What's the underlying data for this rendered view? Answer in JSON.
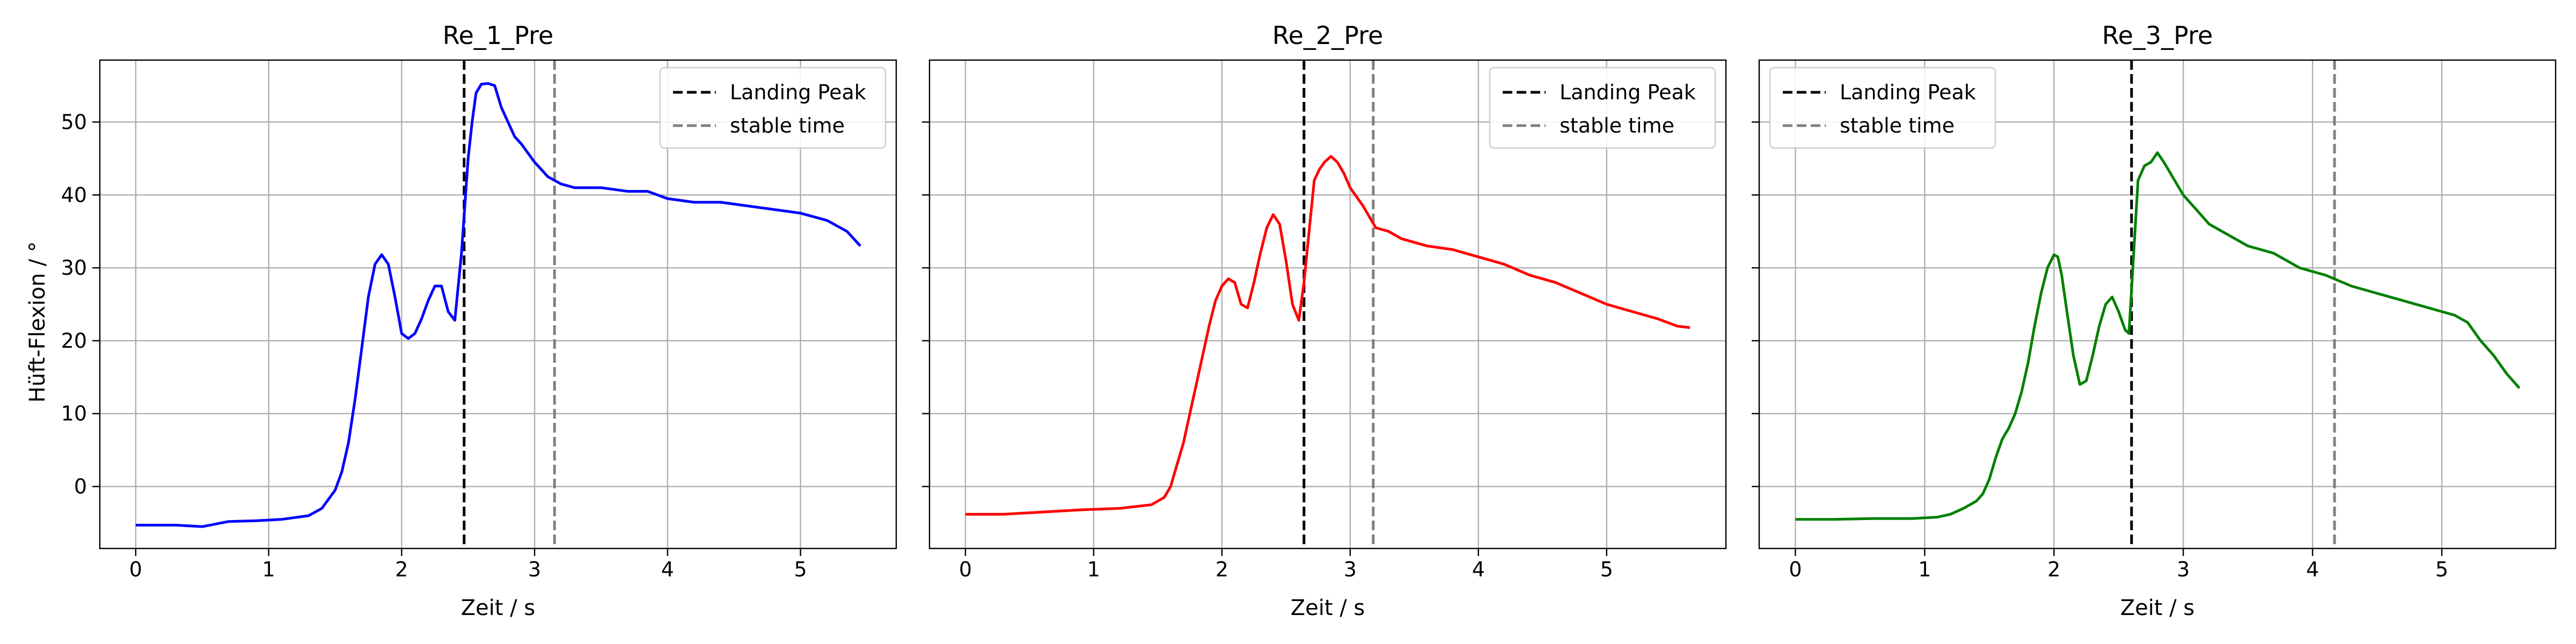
{
  "figure": {
    "ylabel": "Hüft-Flexion / °"
  },
  "chart_data": [
    {
      "type": "line",
      "title": "Re_1_Pre",
      "xlabel": "Zeit / s",
      "ylabel": "Hüft-Flexion / °",
      "xlim": [
        -0.27,
        5.72
      ],
      "ylim": [
        -8.5,
        58.5
      ],
      "xticks": [
        0,
        1,
        2,
        3,
        4,
        5
      ],
      "yticks": [
        0,
        10,
        20,
        30,
        40,
        50
      ],
      "grid": true,
      "legend_position": "top-right",
      "series": [
        {
          "color": "#0000ff",
          "x": [
            0,
            0.3,
            0.5,
            0.7,
            0.9,
            1.1,
            1.3,
            1.4,
            1.5,
            1.55,
            1.6,
            1.65,
            1.7,
            1.75,
            1.8,
            1.85,
            1.9,
            1.95,
            2.0,
            2.05,
            2.1,
            2.15,
            2.2,
            2.25,
            2.3,
            2.35,
            2.4,
            2.45,
            2.5,
            2.53,
            2.56,
            2.6,
            2.65,
            2.7,
            2.75,
            2.8,
            2.85,
            2.9,
            3.0,
            3.1,
            3.2,
            3.3,
            3.5,
            3.7,
            3.85,
            4.0,
            4.2,
            4.4,
            4.6,
            4.8,
            5.0,
            5.2,
            5.35,
            5.45
          ],
          "y": [
            -5.3,
            -5.3,
            -5.5,
            -4.8,
            -4.7,
            -4.5,
            -4.0,
            -3.0,
            -0.5,
            2.0,
            6.0,
            12.0,
            19.0,
            26.0,
            30.5,
            31.8,
            30.5,
            26.0,
            21.0,
            20.3,
            21.0,
            23.0,
            25.5,
            27.5,
            27.5,
            24.0,
            22.8,
            32.0,
            45.0,
            50.0,
            54.0,
            55.2,
            55.3,
            55.0,
            52.0,
            50.0,
            48.0,
            47.0,
            44.5,
            42.5,
            41.5,
            41.0,
            41.0,
            40.5,
            40.5,
            39.5,
            39.0,
            39.0,
            38.5,
            38.0,
            37.5,
            36.5,
            35.0,
            33.0
          ]
        }
      ],
      "vlines": [
        {
          "name": "Landing Peak",
          "x": 2.47,
          "color": "#000000"
        },
        {
          "name": "stable time",
          "x": 3.15,
          "color": "#808080"
        }
      ],
      "legend": [
        {
          "label": "Landing Peak",
          "color": "#000000"
        },
        {
          "label": "stable time",
          "color": "#808080"
        }
      ]
    },
    {
      "type": "line",
      "title": "Re_2_Pre",
      "xlabel": "Zeit / s",
      "ylabel": "",
      "xlim": [
        -0.28,
        5.93
      ],
      "ylim": [
        -8.5,
        58.5
      ],
      "xticks": [
        0,
        1,
        2,
        3,
        4,
        5
      ],
      "yticks": [
        0,
        10,
        20,
        30,
        40,
        50
      ],
      "grid": true,
      "legend_position": "top-right",
      "series": [
        {
          "color": "#ff0000",
          "x": [
            0,
            0.3,
            0.6,
            0.9,
            1.2,
            1.45,
            1.55,
            1.6,
            1.65,
            1.7,
            1.75,
            1.8,
            1.85,
            1.9,
            1.95,
            2.0,
            2.05,
            2.1,
            2.15,
            2.2,
            2.25,
            2.3,
            2.35,
            2.4,
            2.45,
            2.5,
            2.55,
            2.6,
            2.64,
            2.68,
            2.72,
            2.76,
            2.8,
            2.85,
            2.9,
            2.95,
            3.0,
            3.1,
            3.2,
            3.3,
            3.4,
            3.6,
            3.8,
            4.0,
            4.2,
            4.4,
            4.6,
            4.8,
            5.0,
            5.2,
            5.4,
            5.55,
            5.65
          ],
          "y": [
            -3.8,
            -3.8,
            -3.5,
            -3.2,
            -3.0,
            -2.5,
            -1.5,
            0.0,
            3.0,
            6.0,
            10.0,
            14.0,
            18.0,
            22.0,
            25.5,
            27.5,
            28.5,
            28.0,
            25.0,
            24.5,
            28.0,
            32.0,
            35.5,
            37.3,
            36.0,
            31.0,
            25.0,
            22.8,
            28.0,
            35.0,
            42.0,
            43.5,
            44.5,
            45.3,
            44.5,
            43.0,
            41.0,
            38.5,
            35.5,
            35.0,
            34.0,
            33.0,
            32.5,
            31.5,
            30.5,
            29.0,
            28.0,
            26.5,
            25.0,
            24.0,
            23.0,
            22.0,
            21.8
          ]
        }
      ],
      "vlines": [
        {
          "name": "Landing Peak",
          "x": 2.64,
          "color": "#000000"
        },
        {
          "name": "stable time",
          "x": 3.18,
          "color": "#808080"
        }
      ],
      "legend": [
        {
          "label": "Landing Peak",
          "color": "#000000"
        },
        {
          "label": "stable time",
          "color": "#808080"
        }
      ]
    },
    {
      "type": "line",
      "title": "Re_3_Pre",
      "xlabel": "Zeit / s",
      "ylabel": "",
      "xlim": [
        -0.28,
        5.88
      ],
      "ylim": [
        -8.5,
        58.5
      ],
      "xticks": [
        0,
        1,
        2,
        3,
        4,
        5
      ],
      "yticks": [
        0,
        10,
        20,
        30,
        40,
        50
      ],
      "grid": true,
      "legend_position": "top-left",
      "series": [
        {
          "color": "#008000",
          "x": [
            0,
            0.3,
            0.6,
            0.9,
            1.1,
            1.2,
            1.3,
            1.4,
            1.45,
            1.5,
            1.55,
            1.6,
            1.65,
            1.7,
            1.75,
            1.8,
            1.85,
            1.9,
            1.95,
            2.0,
            2.03,
            2.06,
            2.1,
            2.15,
            2.2,
            2.25,
            2.3,
            2.35,
            2.4,
            2.45,
            2.5,
            2.55,
            2.58,
            2.61,
            2.65,
            2.7,
            2.75,
            2.8,
            2.85,
            2.9,
            3.0,
            3.1,
            3.2,
            3.3,
            3.5,
            3.7,
            3.9,
            4.1,
            4.3,
            4.5,
            4.7,
            4.9,
            5.0,
            5.1,
            5.2,
            5.3,
            5.4,
            5.5,
            5.6
          ],
          "y": [
            -4.5,
            -4.5,
            -4.4,
            -4.4,
            -4.2,
            -3.8,
            -3.0,
            -2.0,
            -1.0,
            1.0,
            4.0,
            6.5,
            8.0,
            10.0,
            13.0,
            17.0,
            22.0,
            26.5,
            30.0,
            31.8,
            31.5,
            29.0,
            24.0,
            18.0,
            14.0,
            14.5,
            18.0,
            22.0,
            25.0,
            26.0,
            24.0,
            21.5,
            21.0,
            30.0,
            42.0,
            44.0,
            44.5,
            45.8,
            44.5,
            43.0,
            40.0,
            38.0,
            36.0,
            35.0,
            33.0,
            32.0,
            30.0,
            29.0,
            27.5,
            26.5,
            25.5,
            24.5,
            24.0,
            23.5,
            22.5,
            20.0,
            18.0,
            15.5,
            13.5
          ]
        }
      ],
      "vlines": [
        {
          "name": "Landing Peak",
          "x": 2.6,
          "color": "#000000"
        },
        {
          "name": "stable time",
          "x": 4.17,
          "color": "#808080"
        }
      ],
      "legend": [
        {
          "label": "Landing Peak",
          "color": "#000000"
        },
        {
          "label": "stable time",
          "color": "#808080"
        }
      ]
    }
  ]
}
